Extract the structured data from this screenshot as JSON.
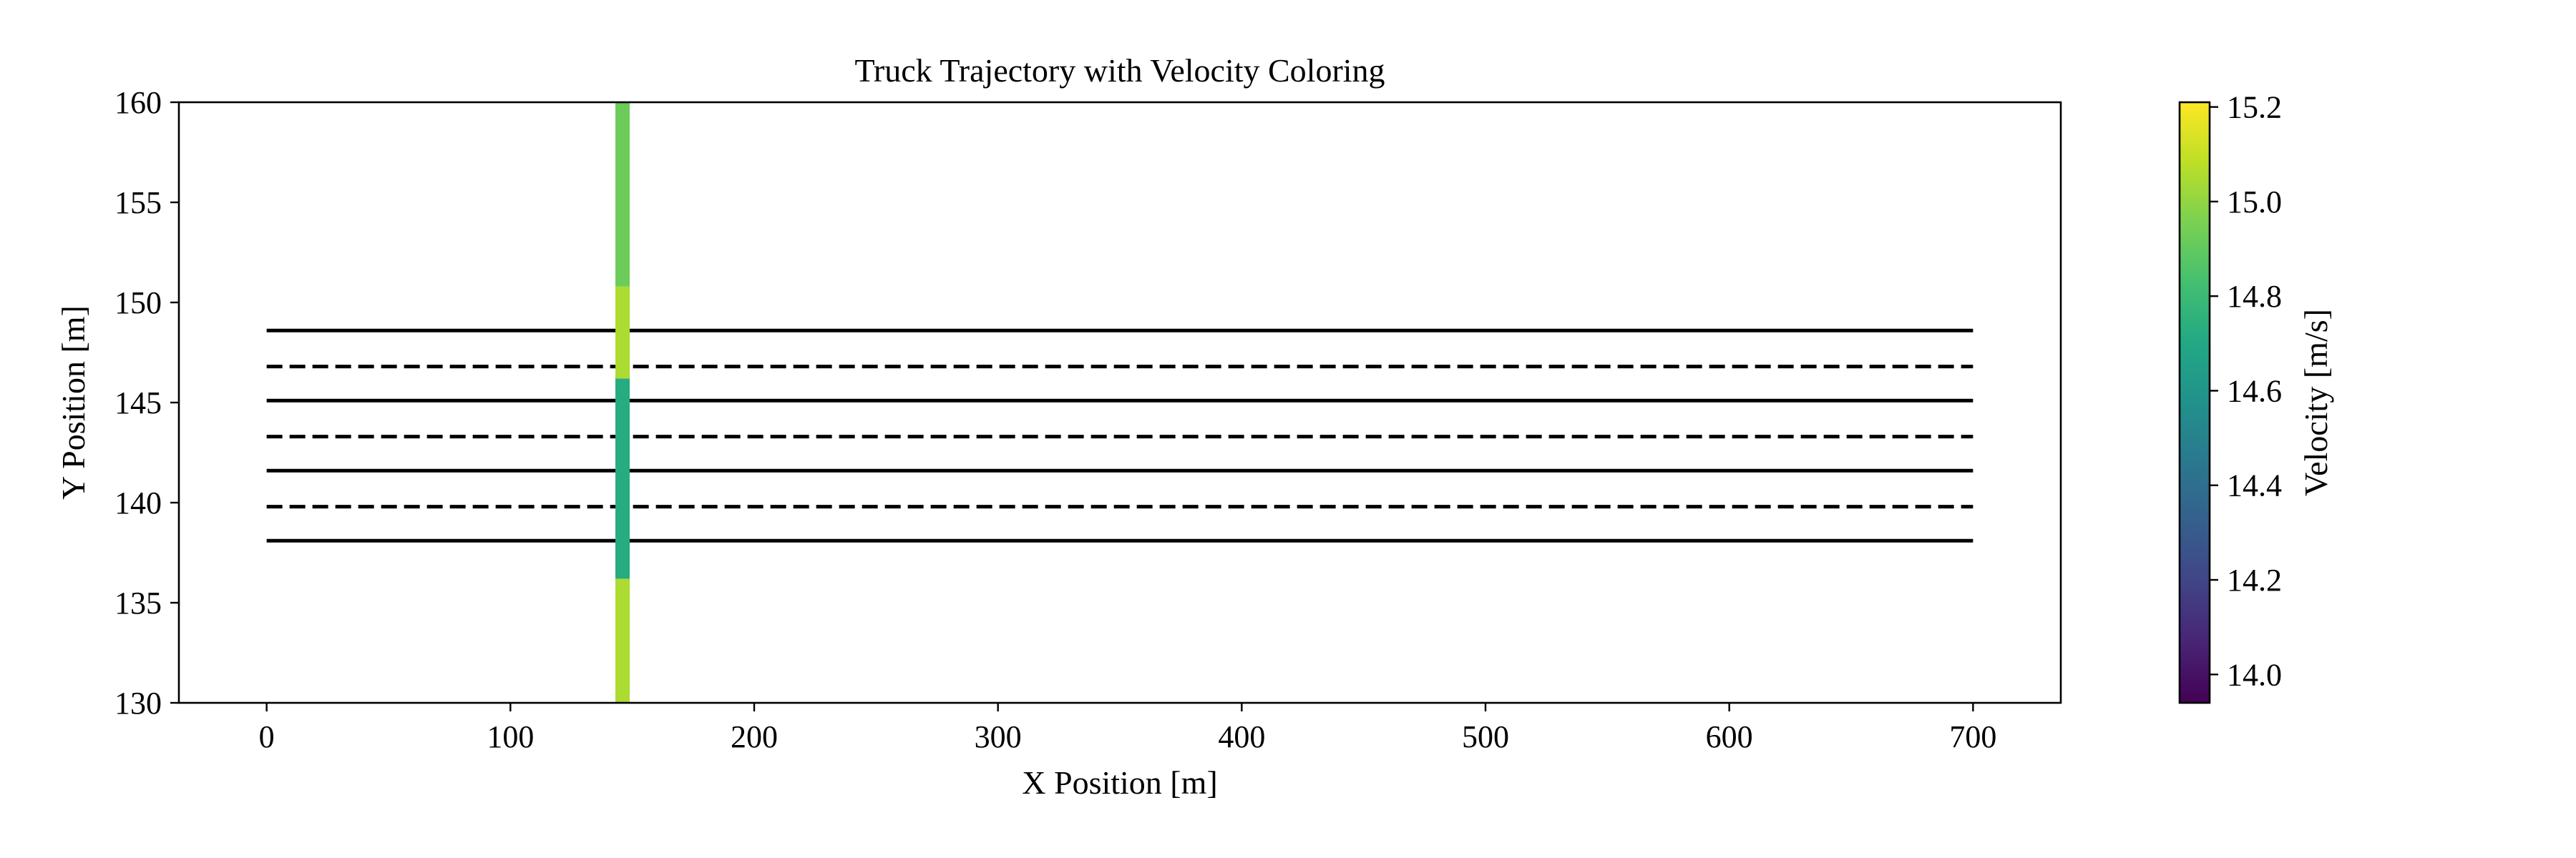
{
  "chart_data": {
    "type": "line",
    "title": "Truck Trajectory with Velocity Coloring",
    "xlabel": "X Position [m]",
    "ylabel": "Y Position [m]",
    "xlim": [
      -36,
      736
    ],
    "ylim": [
      130,
      160
    ],
    "x_ticks": [
      0,
      100,
      200,
      300,
      400,
      500,
      600,
      700
    ],
    "y_ticks": [
      130,
      135,
      140,
      145,
      150,
      155,
      160
    ],
    "grid": false,
    "lane_lines": [
      {
        "y": 148.6,
        "x_start": 0,
        "x_end": 700,
        "style": "solid"
      },
      {
        "y": 146.8,
        "x_start": 0,
        "x_end": 700,
        "style": "dashed"
      },
      {
        "y": 145.1,
        "x_start": 0,
        "x_end": 700,
        "style": "solid"
      },
      {
        "y": 143.3,
        "x_start": 0,
        "x_end": 700,
        "style": "dashed"
      },
      {
        "y": 141.6,
        "x_start": 0,
        "x_end": 700,
        "style": "solid"
      },
      {
        "y": 139.8,
        "x_start": 0,
        "x_end": 700,
        "style": "dashed"
      },
      {
        "y": 138.1,
        "x_start": 0,
        "x_end": 700,
        "style": "solid"
      }
    ],
    "trajectory": {
      "x": 146,
      "segments": [
        {
          "y_start": 130.0,
          "y_end": 136.2,
          "velocity": 15.05
        },
        {
          "y_start": 136.2,
          "y_end": 146.2,
          "velocity": 14.72
        },
        {
          "y_start": 146.2,
          "y_end": 150.8,
          "velocity": 15.05
        },
        {
          "y_start": 150.8,
          "y_end": 160.0,
          "velocity": 14.92
        }
      ]
    },
    "colorbar": {
      "label": "Velocity [m/s]",
      "colormap": "viridis",
      "range": [
        13.94,
        15.21
      ],
      "ticks": [
        14.0,
        14.2,
        14.4,
        14.6,
        14.8,
        15.0,
        15.2
      ],
      "tick_labels": [
        "14.0",
        "14.2",
        "14.4",
        "14.6",
        "14.8",
        "15.0",
        "15.2"
      ]
    }
  }
}
